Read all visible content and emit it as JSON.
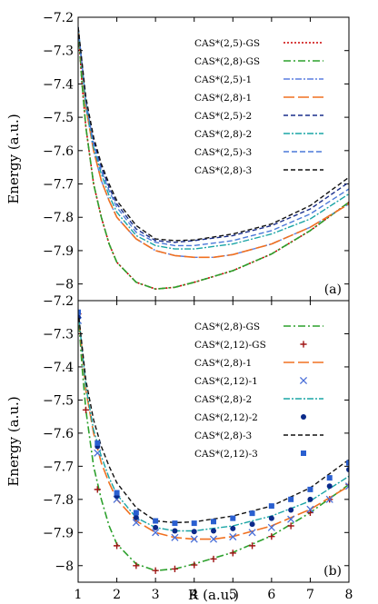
{
  "chart_data": [
    {
      "type": "line",
      "panel_label": "(a)",
      "ylabel": "Energy (a.u.)",
      "xlim": [
        1,
        8
      ],
      "ylim": [
        -8.05,
        -7.2
      ],
      "yticks": [
        "−7.2",
        "−7.3",
        "−7.4",
        "−7.5",
        "−7.6",
        "−7.7",
        "−7.8",
        "−7.9",
        "−8"
      ],
      "legend_position": "top-right",
      "series": [
        {
          "name": "CAS*(2,5)-GS",
          "color": "#cc0000",
          "dash": "2,2",
          "width": 1.6,
          "x": [
            1.0,
            1.1,
            1.2,
            1.4,
            1.6,
            1.8,
            2.0,
            2.5,
            3.0,
            3.5,
            4.0,
            5.0,
            6.0,
            7.0,
            8.0
          ],
          "y": [
            -7.23,
            -7.4,
            -7.53,
            -7.7,
            -7.8,
            -7.88,
            -7.935,
            -7.995,
            -8.015,
            -8.01,
            -7.995,
            -7.96,
            -7.91,
            -7.84,
            -7.755
          ]
        },
        {
          "name": "CAS*(2,8)-GS",
          "color": "#2ca02c",
          "dash": "8,3,2,3",
          "width": 1.6,
          "x": [
            1.0,
            1.1,
            1.2,
            1.4,
            1.6,
            1.8,
            2.0,
            2.5,
            3.0,
            3.5,
            4.0,
            5.0,
            6.0,
            7.0,
            8.0
          ],
          "y": [
            -7.23,
            -7.4,
            -7.53,
            -7.7,
            -7.8,
            -7.88,
            -7.935,
            -7.995,
            -8.015,
            -8.01,
            -7.995,
            -7.96,
            -7.91,
            -7.84,
            -7.755
          ]
        },
        {
          "name": "CAS*(2,5)-1",
          "color": "#5b7fe0",
          "dash": "7,2,2,2",
          "width": 1.4,
          "x": [
            1.0,
            1.2,
            1.4,
            1.6,
            1.8,
            2.0,
            2.5,
            3.0,
            3.5,
            4.0,
            4.5,
            5.0,
            6.0,
            7.0,
            8.0
          ],
          "y": [
            -7.23,
            -7.47,
            -7.6,
            -7.69,
            -7.75,
            -7.8,
            -7.865,
            -7.9,
            -7.915,
            -7.92,
            -7.92,
            -7.912,
            -7.88,
            -7.83,
            -7.76
          ]
        },
        {
          "name": "CAS*(2,8)-1",
          "color": "#f07020",
          "dash": "12,4",
          "width": 1.6,
          "x": [
            1.0,
            1.2,
            1.4,
            1.6,
            1.8,
            2.0,
            2.5,
            3.0,
            3.5,
            4.0,
            4.5,
            5.0,
            6.0,
            7.0,
            8.0
          ],
          "y": [
            -7.23,
            -7.47,
            -7.6,
            -7.69,
            -7.75,
            -7.8,
            -7.865,
            -7.9,
            -7.915,
            -7.92,
            -7.92,
            -7.912,
            -7.88,
            -7.83,
            -7.76
          ]
        },
        {
          "name": "CAS*(2,5)-2",
          "color": "#1a2f8c",
          "dash": "5,3",
          "width": 1.4,
          "x": [
            1.0,
            1.2,
            1.4,
            1.6,
            1.8,
            2.0,
            2.5,
            3.0,
            3.5,
            4.0,
            5.0,
            6.0,
            7.0,
            8.0
          ],
          "y": [
            -7.23,
            -7.45,
            -7.57,
            -7.65,
            -7.71,
            -7.76,
            -7.835,
            -7.87,
            -7.875,
            -7.87,
            -7.855,
            -7.825,
            -7.775,
            -7.695
          ]
        },
        {
          "name": "CAS*(2,8)-2",
          "color": "#1aa5a5",
          "dash": "7,2,2,2",
          "width": 1.4,
          "x": [
            1.0,
            1.2,
            1.4,
            1.6,
            1.8,
            2.0,
            2.5,
            3.0,
            3.5,
            4.0,
            5.0,
            6.0,
            7.0,
            8.0
          ],
          "y": [
            -7.23,
            -7.46,
            -7.59,
            -7.67,
            -7.735,
            -7.785,
            -7.855,
            -7.885,
            -7.895,
            -7.895,
            -7.88,
            -7.85,
            -7.805,
            -7.73
          ]
        },
        {
          "name": "CAS*(2,5)-3",
          "color": "#4a78d8",
          "dash": "6,3",
          "width": 1.4,
          "x": [
            1.0,
            1.2,
            1.4,
            1.6,
            1.8,
            2.0,
            2.5,
            3.0,
            3.5,
            4.0,
            5.0,
            6.0,
            7.0,
            8.0
          ],
          "y": [
            -7.23,
            -7.45,
            -7.58,
            -7.66,
            -7.72,
            -7.77,
            -7.845,
            -7.875,
            -7.885,
            -7.885,
            -7.87,
            -7.84,
            -7.79,
            -7.715
          ]
        },
        {
          "name": "CAS*(2,8)-3",
          "color": "#111111",
          "dash": "5,3",
          "width": 1.4,
          "x": [
            1.0,
            1.2,
            1.4,
            1.6,
            1.8,
            2.0,
            2.5,
            3.0,
            3.5,
            4.0,
            5.0,
            6.0,
            7.0,
            8.0
          ],
          "y": [
            -7.23,
            -7.44,
            -7.56,
            -7.64,
            -7.7,
            -7.75,
            -7.825,
            -7.865,
            -7.87,
            -7.868,
            -7.85,
            -7.82,
            -7.765,
            -7.68
          ]
        }
      ]
    },
    {
      "type": "line",
      "panel_label": "(b)",
      "ylabel": "Energy (a.u.)",
      "xlabel": "R (a.u.)",
      "xlim": [
        1,
        8
      ],
      "ylim": [
        -8.05,
        -7.2
      ],
      "xticks": [
        "1",
        "2",
        "3",
        "4",
        "5",
        "6",
        "7",
        "8"
      ],
      "yticks": [
        "−7.2",
        "−7.3",
        "−7.4",
        "−7.5",
        "−7.6",
        "−7.7",
        "−7.8",
        "−7.9",
        "−8"
      ],
      "legend_position": "top-right",
      "series": [
        {
          "name": "CAS*(2,8)-GS",
          "kind": "line",
          "color": "#2ca02c",
          "dash": "8,3,2,3",
          "width": 1.6,
          "x": [
            1.0,
            1.1,
            1.2,
            1.4,
            1.6,
            1.8,
            2.0,
            2.5,
            3.0,
            3.5,
            4.0,
            5.0,
            6.0,
            7.0,
            8.0
          ],
          "y": [
            -7.23,
            -7.4,
            -7.53,
            -7.7,
            -7.8,
            -7.88,
            -7.935,
            -7.995,
            -8.015,
            -8.01,
            -7.995,
            -7.96,
            -7.91,
            -7.84,
            -7.755
          ]
        },
        {
          "name": "CAS*(2,12)-GS",
          "kind": "marker",
          "marker": "plus",
          "color": "#a01515",
          "x": [
            1.0,
            1.2,
            1.5,
            2.0,
            2.5,
            3.0,
            3.5,
            4.0,
            4.5,
            5.0,
            5.5,
            6.0,
            6.5,
            7.0,
            7.5,
            8.0
          ],
          "y": [
            -7.24,
            -7.53,
            -7.77,
            -7.94,
            -8.0,
            -8.015,
            -8.01,
            -7.998,
            -7.98,
            -7.962,
            -7.94,
            -7.912,
            -7.88,
            -7.84,
            -7.8,
            -7.755
          ]
        },
        {
          "name": "CAS*(2,8)-1",
          "kind": "line",
          "color": "#f07020",
          "dash": "12,4",
          "width": 1.6,
          "x": [
            1.0,
            1.2,
            1.4,
            1.6,
            1.8,
            2.0,
            2.5,
            3.0,
            3.5,
            4.0,
            4.5,
            5.0,
            6.0,
            7.0,
            8.0
          ],
          "y": [
            -7.23,
            -7.47,
            -7.6,
            -7.69,
            -7.75,
            -7.8,
            -7.865,
            -7.9,
            -7.915,
            -7.92,
            -7.92,
            -7.912,
            -7.88,
            -7.83,
            -7.76
          ]
        },
        {
          "name": "CAS*(2,12)-1",
          "kind": "marker",
          "marker": "cross",
          "color": "#4a6fd8",
          "x": [
            1.0,
            1.5,
            2.0,
            2.5,
            3.0,
            3.5,
            4.0,
            4.5,
            5.0,
            5.5,
            6.0,
            6.5,
            7.0,
            7.5,
            8.0
          ],
          "y": [
            -7.26,
            -7.66,
            -7.8,
            -7.87,
            -7.9,
            -7.915,
            -7.92,
            -7.92,
            -7.913,
            -7.9,
            -7.885,
            -7.86,
            -7.83,
            -7.8,
            -7.76
          ]
        },
        {
          "name": "CAS*(2,8)-2",
          "kind": "line",
          "color": "#1aa5a5",
          "dash": "7,2,2,2",
          "width": 1.4,
          "x": [
            1.0,
            1.2,
            1.4,
            1.6,
            1.8,
            2.0,
            2.5,
            3.0,
            3.5,
            4.0,
            5.0,
            6.0,
            7.0,
            8.0
          ],
          "y": [
            -7.23,
            -7.46,
            -7.59,
            -7.67,
            -7.735,
            -7.785,
            -7.855,
            -7.885,
            -7.895,
            -7.895,
            -7.88,
            -7.85,
            -7.805,
            -7.73
          ]
        },
        {
          "name": "CAS*(2,12)-2",
          "kind": "marker",
          "marker": "dot",
          "color": "#0b2a8a",
          "x": [
            1.0,
            1.5,
            2.0,
            2.5,
            3.0,
            3.5,
            4.0,
            4.5,
            5.0,
            5.5,
            6.0,
            6.5,
            7.0,
            7.5,
            8.0
          ],
          "y": [
            -7.25,
            -7.64,
            -7.79,
            -7.855,
            -7.885,
            -7.895,
            -7.897,
            -7.895,
            -7.888,
            -7.875,
            -7.857,
            -7.832,
            -7.8,
            -7.76,
            -7.71
          ]
        },
        {
          "name": "CAS*(2,8)-3",
          "kind": "line",
          "color": "#111111",
          "dash": "5,3",
          "width": 1.4,
          "x": [
            1.0,
            1.2,
            1.4,
            1.6,
            1.8,
            2.0,
            2.5,
            3.0,
            3.5,
            4.0,
            5.0,
            6.0,
            7.0,
            8.0
          ],
          "y": [
            -7.23,
            -7.44,
            -7.56,
            -7.64,
            -7.7,
            -7.75,
            -7.825,
            -7.865,
            -7.87,
            -7.868,
            -7.85,
            -7.82,
            -7.765,
            -7.68
          ]
        },
        {
          "name": "CAS*(2,12)-3",
          "kind": "marker",
          "marker": "square",
          "color": "#2a5fd0",
          "x": [
            1.0,
            1.5,
            2.0,
            2.5,
            3.0,
            3.5,
            4.0,
            4.5,
            5.0,
            5.5,
            6.0,
            6.5,
            7.0,
            7.5,
            8.0
          ],
          "y": [
            -7.235,
            -7.63,
            -7.78,
            -7.84,
            -7.865,
            -7.872,
            -7.872,
            -7.867,
            -7.857,
            -7.842,
            -7.82,
            -7.8,
            -7.77,
            -7.735,
            -7.69
          ]
        }
      ]
    }
  ]
}
